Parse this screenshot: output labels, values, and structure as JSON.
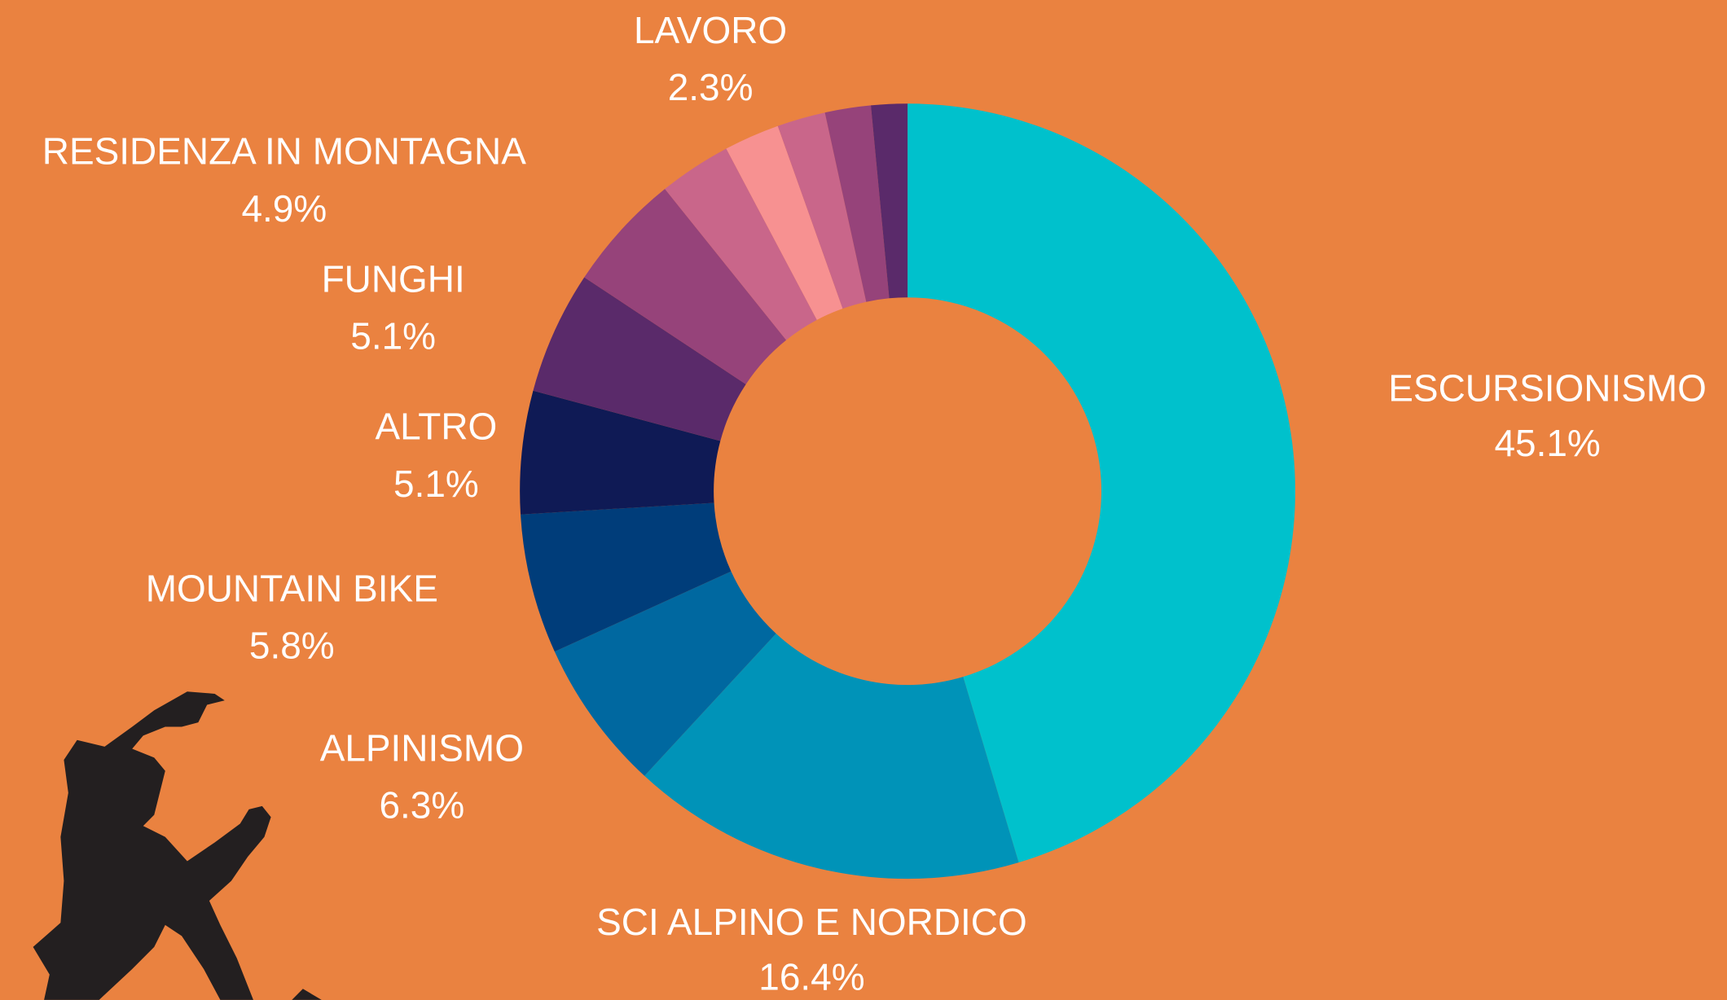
{
  "chart_data": {
    "type": "donut",
    "categories": [
      "ESCURSIONISMO",
      "SCI ALPINO E NORDICO",
      "ALPINISMO",
      "MOUNTAIN BIKE",
      "ALTRO",
      "FUNGHI",
      "RESIDENZA IN MONTAGNA",
      null,
      "LAVORO",
      null,
      null,
      null
    ],
    "values": [
      45.1,
      16.4,
      6.3,
      5.8,
      5.1,
      5.1,
      4.9,
      3.0,
      2.3,
      2.0,
      1.9,
      1.5
    ],
    "value_labels": [
      "45.1%",
      "16.4%",
      "6.3%",
      "5.8%",
      "5.1%",
      "5.1%",
      "4.9%",
      null,
      "2.3%",
      null,
      null,
      null
    ],
    "colors": [
      "#00c1cc",
      "#0093b8",
      "#0068a0",
      "#003d7a",
      "#0f1a55",
      "#5a2a6a",
      "#96437a",
      "#c9668a",
      "#f79191",
      "#c9668a",
      "#96437a",
      "#5a2a6a"
    ]
  }
}
